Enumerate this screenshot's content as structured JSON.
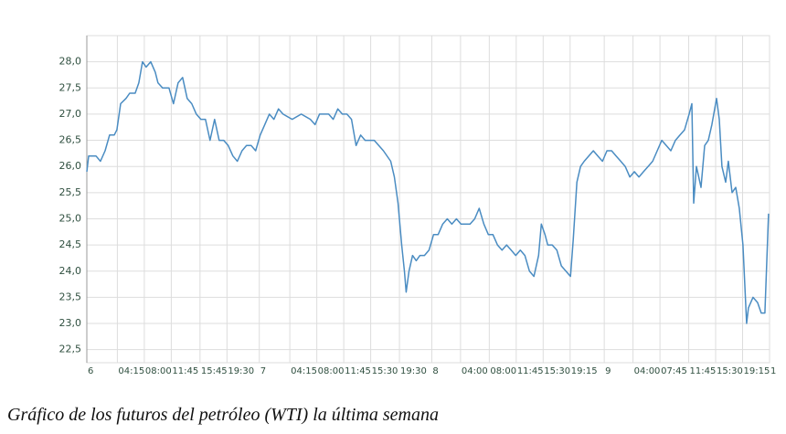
{
  "chart_data": {
    "type": "line",
    "caption": "Gráfico de los futuros del petróleo (WTI) la última semana",
    "color": "#4a8cc2",
    "grid": true,
    "x": [
      0,
      0.25,
      1.27,
      1.9,
      2.54,
      3.17,
      3.81,
      4.19,
      4.7,
      5.46,
      5.97,
      6.73,
      7.24,
      7.75,
      8.25,
      8.89,
      9.52,
      9.9,
      10.54,
      11.43,
      12.06,
      12.7,
      13.33,
      13.97,
      14.6,
      15.24,
      15.87,
      16.51,
      17.14,
      17.78,
      18.41,
      19.05,
      19.68,
      20.32,
      20.95,
      21.59,
      22.22,
      22.86,
      23.49,
      24.13,
      24.76,
      25.4,
      26.03,
      26.67,
      27.3,
      28.57,
      29.84,
      31.11,
      31.75,
      32.38,
      33.65,
      34.29,
      34.92,
      35.56,
      36.19,
      36.83,
      37.46,
      38.1,
      38.73,
      40,
      41.27,
      42.29,
      42.79,
      43.3,
      43.81,
      44.19,
      44.44,
      44.83,
      45.33,
      45.84,
      46.35,
      46.98,
      47.62,
      48.25,
      48.89,
      49.52,
      50.16,
      50.79,
      51.43,
      52.06,
      53.33,
      53.97,
      54.6,
      55.24,
      55.87,
      56.51,
      57.14,
      57.78,
      58.41,
      59.05,
      59.68,
      60.32,
      60.95,
      61.59,
      62.22,
      62.86,
      63.24,
      63.75,
      64.13,
      64.76,
      65.4,
      66.03,
      66.67,
      67.3,
      67.68,
      68.19,
      68.7,
      69.21,
      69.84,
      70.48,
      71.11,
      71.75,
      72.38,
      73.02,
      73.65,
      74.29,
      74.92,
      75.56,
      76.19,
      76.83,
      77.46,
      78.1,
      78.73,
      79.37,
      80,
      80.63,
      81.27,
      81.9,
      82.54,
      83.17,
      83.81,
      84.19,
      84.44,
      84.83,
      85.46,
      85.97,
      86.48,
      86.98,
      87.62,
      88,
      88.38,
      88.89,
      89.27,
      89.78,
      90.29,
      90.79,
      91.3,
      91.81,
      92.06,
      92.7,
      93.33,
      93.84,
      94.35,
      94.86
    ],
    "values": [
      25.9,
      26.2,
      26.2,
      26.1,
      26.3,
      26.6,
      26.6,
      26.7,
      27.2,
      27.3,
      27.4,
      27.4,
      27.6,
      28.0,
      27.9,
      28.0,
      27.8,
      27.6,
      27.5,
      27.5,
      27.2,
      27.6,
      27.7,
      27.3,
      27.2,
      27.0,
      26.9,
      26.9,
      26.5,
      26.9,
      26.5,
      26.5,
      26.4,
      26.2,
      26.1,
      26.3,
      26.4,
      26.4,
      26.3,
      26.6,
      26.8,
      27.0,
      26.9,
      27.1,
      27.0,
      26.9,
      27.0,
      26.9,
      26.8,
      27.0,
      27.0,
      26.9,
      27.1,
      27.0,
      27.0,
      26.9,
      26.4,
      26.6,
      26.5,
      26.5,
      26.3,
      26.1,
      25.8,
      25.3,
      24.5,
      24.0,
      23.6,
      24.0,
      24.3,
      24.2,
      24.3,
      24.3,
      24.4,
      24.7,
      24.7,
      24.9,
      25.0,
      24.9,
      25.0,
      24.9,
      24.9,
      25.0,
      25.2,
      24.9,
      24.7,
      24.7,
      24.5,
      24.4,
      24.5,
      24.4,
      24.3,
      24.4,
      24.3,
      24.0,
      23.9,
      24.3,
      24.9,
      24.7,
      24.5,
      24.5,
      24.4,
      24.1,
      24.0,
      23.9,
      24.6,
      25.7,
      26.0,
      26.1,
      26.2,
      26.3,
      26.2,
      26.1,
      26.3,
      26.3,
      26.2,
      26.1,
      26.0,
      25.8,
      25.9,
      25.8,
      25.9,
      26.0,
      26.1,
      26.3,
      26.5,
      26.4,
      26.3,
      26.5,
      26.6,
      26.7,
      27.0,
      27.2,
      25.3,
      26.0,
      25.6,
      26.4,
      26.5,
      26.8,
      27.3,
      26.9,
      26.0,
      25.7,
      26.1,
      25.5,
      25.6,
      25.2,
      24.5,
      23.0,
      23.3,
      23.5,
      23.4,
      23.2,
      23.2,
      25.1
    ],
    "xlim": [
      0,
      95
    ],
    "xticks": [
      {
        "value": 0,
        "label": "6"
      },
      {
        "value": 4.25,
        "label": "04:15"
      },
      {
        "value": 8,
        "label": "08:00"
      },
      {
        "value": 11.75,
        "label": "11:45"
      },
      {
        "value": 15.75,
        "label": "15:45"
      },
      {
        "value": 19.5,
        "label": "19:30"
      },
      {
        "value": 24,
        "label": "7"
      },
      {
        "value": 28.25,
        "label": "04:15"
      },
      {
        "value": 32,
        "label": "08:00"
      },
      {
        "value": 35.75,
        "label": "11:45"
      },
      {
        "value": 39.5,
        "label": "15:30"
      },
      {
        "value": 43.5,
        "label": "19:30"
      },
      {
        "value": 48,
        "label": "8"
      },
      {
        "value": 52,
        "label": "04:00"
      },
      {
        "value": 56,
        "label": "08:00"
      },
      {
        "value": 59.75,
        "label": "11:45"
      },
      {
        "value": 63.5,
        "label": "15:30"
      },
      {
        "value": 67.25,
        "label": "19:15"
      },
      {
        "value": 72,
        "label": "9"
      },
      {
        "value": 76,
        "label": "04:00"
      },
      {
        "value": 79.75,
        "label": "07:45"
      },
      {
        "value": 83.75,
        "label": "11:45"
      },
      {
        "value": 87.5,
        "label": "15:30"
      },
      {
        "value": 91.25,
        "label": "19:15"
      },
      {
        "value": 95,
        "label": "1"
      }
    ],
    "ylim": [
      22.25,
      28.5
    ],
    "yticks": [
      {
        "value": 22.5,
        "label": "22,5"
      },
      {
        "value": 23,
        "label": "23,0"
      },
      {
        "value": 23.5,
        "label": "23,5"
      },
      {
        "value": 24,
        "label": "24,0"
      },
      {
        "value": 24.5,
        "label": "24,5"
      },
      {
        "value": 25,
        "label": "25,0"
      },
      {
        "value": 25.5,
        "label": "25,5"
      },
      {
        "value": 26,
        "label": "26,0"
      },
      {
        "value": 26.5,
        "label": "26,5"
      },
      {
        "value": 27,
        "label": "27,0"
      },
      {
        "value": 27.5,
        "label": "27,5"
      },
      {
        "value": 28,
        "label": "28,0"
      }
    ]
  }
}
